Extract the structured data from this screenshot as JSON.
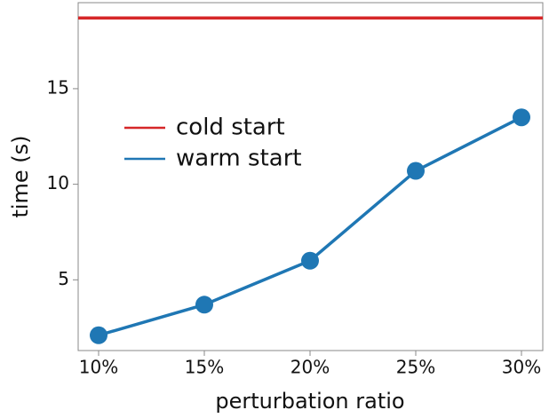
{
  "chart_data": {
    "type": "line",
    "x_label": "perturbation ratio",
    "y_label": "time (s)",
    "categories": [
      "10%",
      "15%",
      "20%",
      "25%",
      "30%"
    ],
    "series": [
      {
        "name": "warm start",
        "color": "#1f77b4",
        "values": [
          2.1,
          3.7,
          6.0,
          10.7,
          13.5
        ]
      }
    ],
    "hlines": [
      {
        "name": "cold start",
        "color": "#d62728",
        "value": 18.7
      }
    ],
    "ylim": [
      1.3,
      19.5
    ],
    "yticks": [
      5,
      10,
      15
    ],
    "grid": false,
    "legend": "upper left"
  }
}
